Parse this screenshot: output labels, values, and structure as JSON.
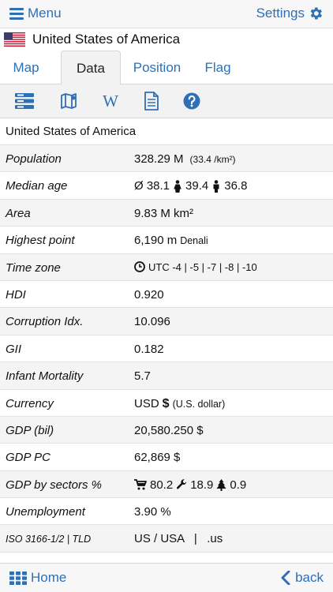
{
  "topbar": {
    "menu_label": "Menu",
    "settings_label": "Settings"
  },
  "country": {
    "name": "United States of America"
  },
  "tabs": [
    {
      "label": "Map"
    },
    {
      "label": "Data"
    },
    {
      "label": "Position"
    },
    {
      "label": "Flag"
    }
  ],
  "toolbar": {
    "wiki_glyph": "W"
  },
  "title": "United States of America",
  "rows": {
    "population": {
      "label": "Population",
      "value": "328.29 M",
      "sub": "(33.4 /km²)"
    },
    "median_age": {
      "label": "Median age",
      "avg": "Ø 38.1",
      "female": "39.4",
      "male": "36.8"
    },
    "area": {
      "label": "Area",
      "value": "9.83 M km²"
    },
    "highest_point": {
      "label": "Highest point",
      "value": "6,190 m",
      "sub": "Denali"
    },
    "time_zone": {
      "label": "Time zone",
      "value": "UTC -4 | -5 | -7 | -8 | -10"
    },
    "hdi": {
      "label": "HDI",
      "value": "0.920"
    },
    "corruption": {
      "label": "Corruption Idx.",
      "value": "10.096"
    },
    "gii": {
      "label": "GII",
      "value": "0.182"
    },
    "infant_mortality": {
      "label": "Infant Mortality",
      "value": "5.7"
    },
    "currency": {
      "label": "Currency",
      "code": "USD",
      "symbol": "$",
      "sub": "(U.S. dollar)"
    },
    "gdp_bil": {
      "label": "GDP (bil)",
      "value": "20,580.250 $"
    },
    "gdp_pc": {
      "label": "GDP PC",
      "value": "62,869 $"
    },
    "gdp_sectors": {
      "label": "GDP by sectors %",
      "agri": "80.2",
      "industry": "18.9",
      "services": "0.9"
    },
    "unemployment": {
      "label": "Unemployment",
      "value": "3.90 %"
    },
    "iso": {
      "label": "ISO 3166-1/2 | TLD",
      "value": "US / USA   |   .us"
    }
  },
  "bottombar": {
    "home_label": "Home",
    "back_label": "back"
  },
  "colors": {
    "accent": "#2f6fb5",
    "hdi_green": "#2fa532"
  }
}
